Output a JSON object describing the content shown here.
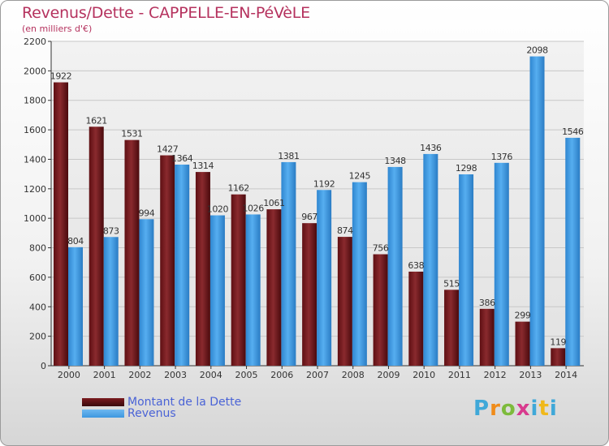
{
  "title": "Revenus/Dette - CAPPELLE-EN-PéVèLE",
  "subtitle": "(en milliers d'€)",
  "logo_text": "Proxiti",
  "colors": {
    "dette": "#7a1a1e",
    "revenus": "#3d97df",
    "title": "#b5325e",
    "legend_text": "#4a63d6"
  },
  "chart_data": {
    "type": "bar",
    "title": "Revenus/Dette - CAPPELLE-EN-PéVèLE",
    "subtitle": "(en milliers d'€)",
    "categories": [
      "2000",
      "2001",
      "2002",
      "2003",
      "2004",
      "2005",
      "2006",
      "2007",
      "2008",
      "2009",
      "2010",
      "2011",
      "2012",
      "2013",
      "2014"
    ],
    "series": [
      {
        "name": "Montant de la Dette",
        "color": "#7a1a1e",
        "values": [
          1922,
          1621,
          1531,
          1427,
          1314,
          1162,
          1061,
          967,
          874,
          756,
          638,
          515,
          386,
          299,
          119
        ]
      },
      {
        "name": "Revenus",
        "color": "#3d97df",
        "values": [
          804,
          873,
          994,
          1364,
          1020,
          1026,
          1381,
          1192,
          1245,
          1348,
          1436,
          1298,
          1376,
          2098,
          1546
        ]
      }
    ],
    "ylim": [
      0,
      2200
    ],
    "yticks": [
      0,
      200,
      400,
      600,
      800,
      1000,
      1200,
      1400,
      1600,
      1800,
      2000,
      2200
    ],
    "grid": true,
    "legend_position": "bottom-left"
  }
}
